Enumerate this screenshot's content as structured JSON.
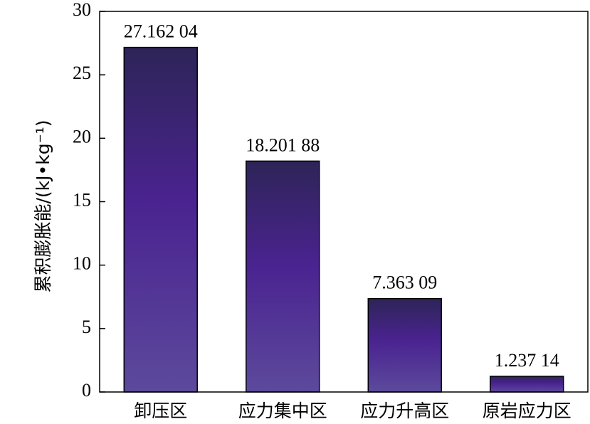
{
  "chart_data": {
    "type": "bar",
    "y_label": "累积膨胀能/(kJ•kg⁻¹)",
    "categories": [
      "卸压区",
      "应力集中区",
      "应力升高区",
      "原岩应力区"
    ],
    "values": [
      27.16204,
      18.20188,
      7.36309,
      1.23714
    ],
    "value_labels": [
      "27.162 04",
      "18.201 88",
      "7.363 09",
      "1.237 14"
    ],
    "color": "#4a2390",
    "ylim": [
      0,
      30
    ],
    "yticks": [
      0,
      5,
      10,
      15,
      20,
      25,
      30
    ]
  }
}
